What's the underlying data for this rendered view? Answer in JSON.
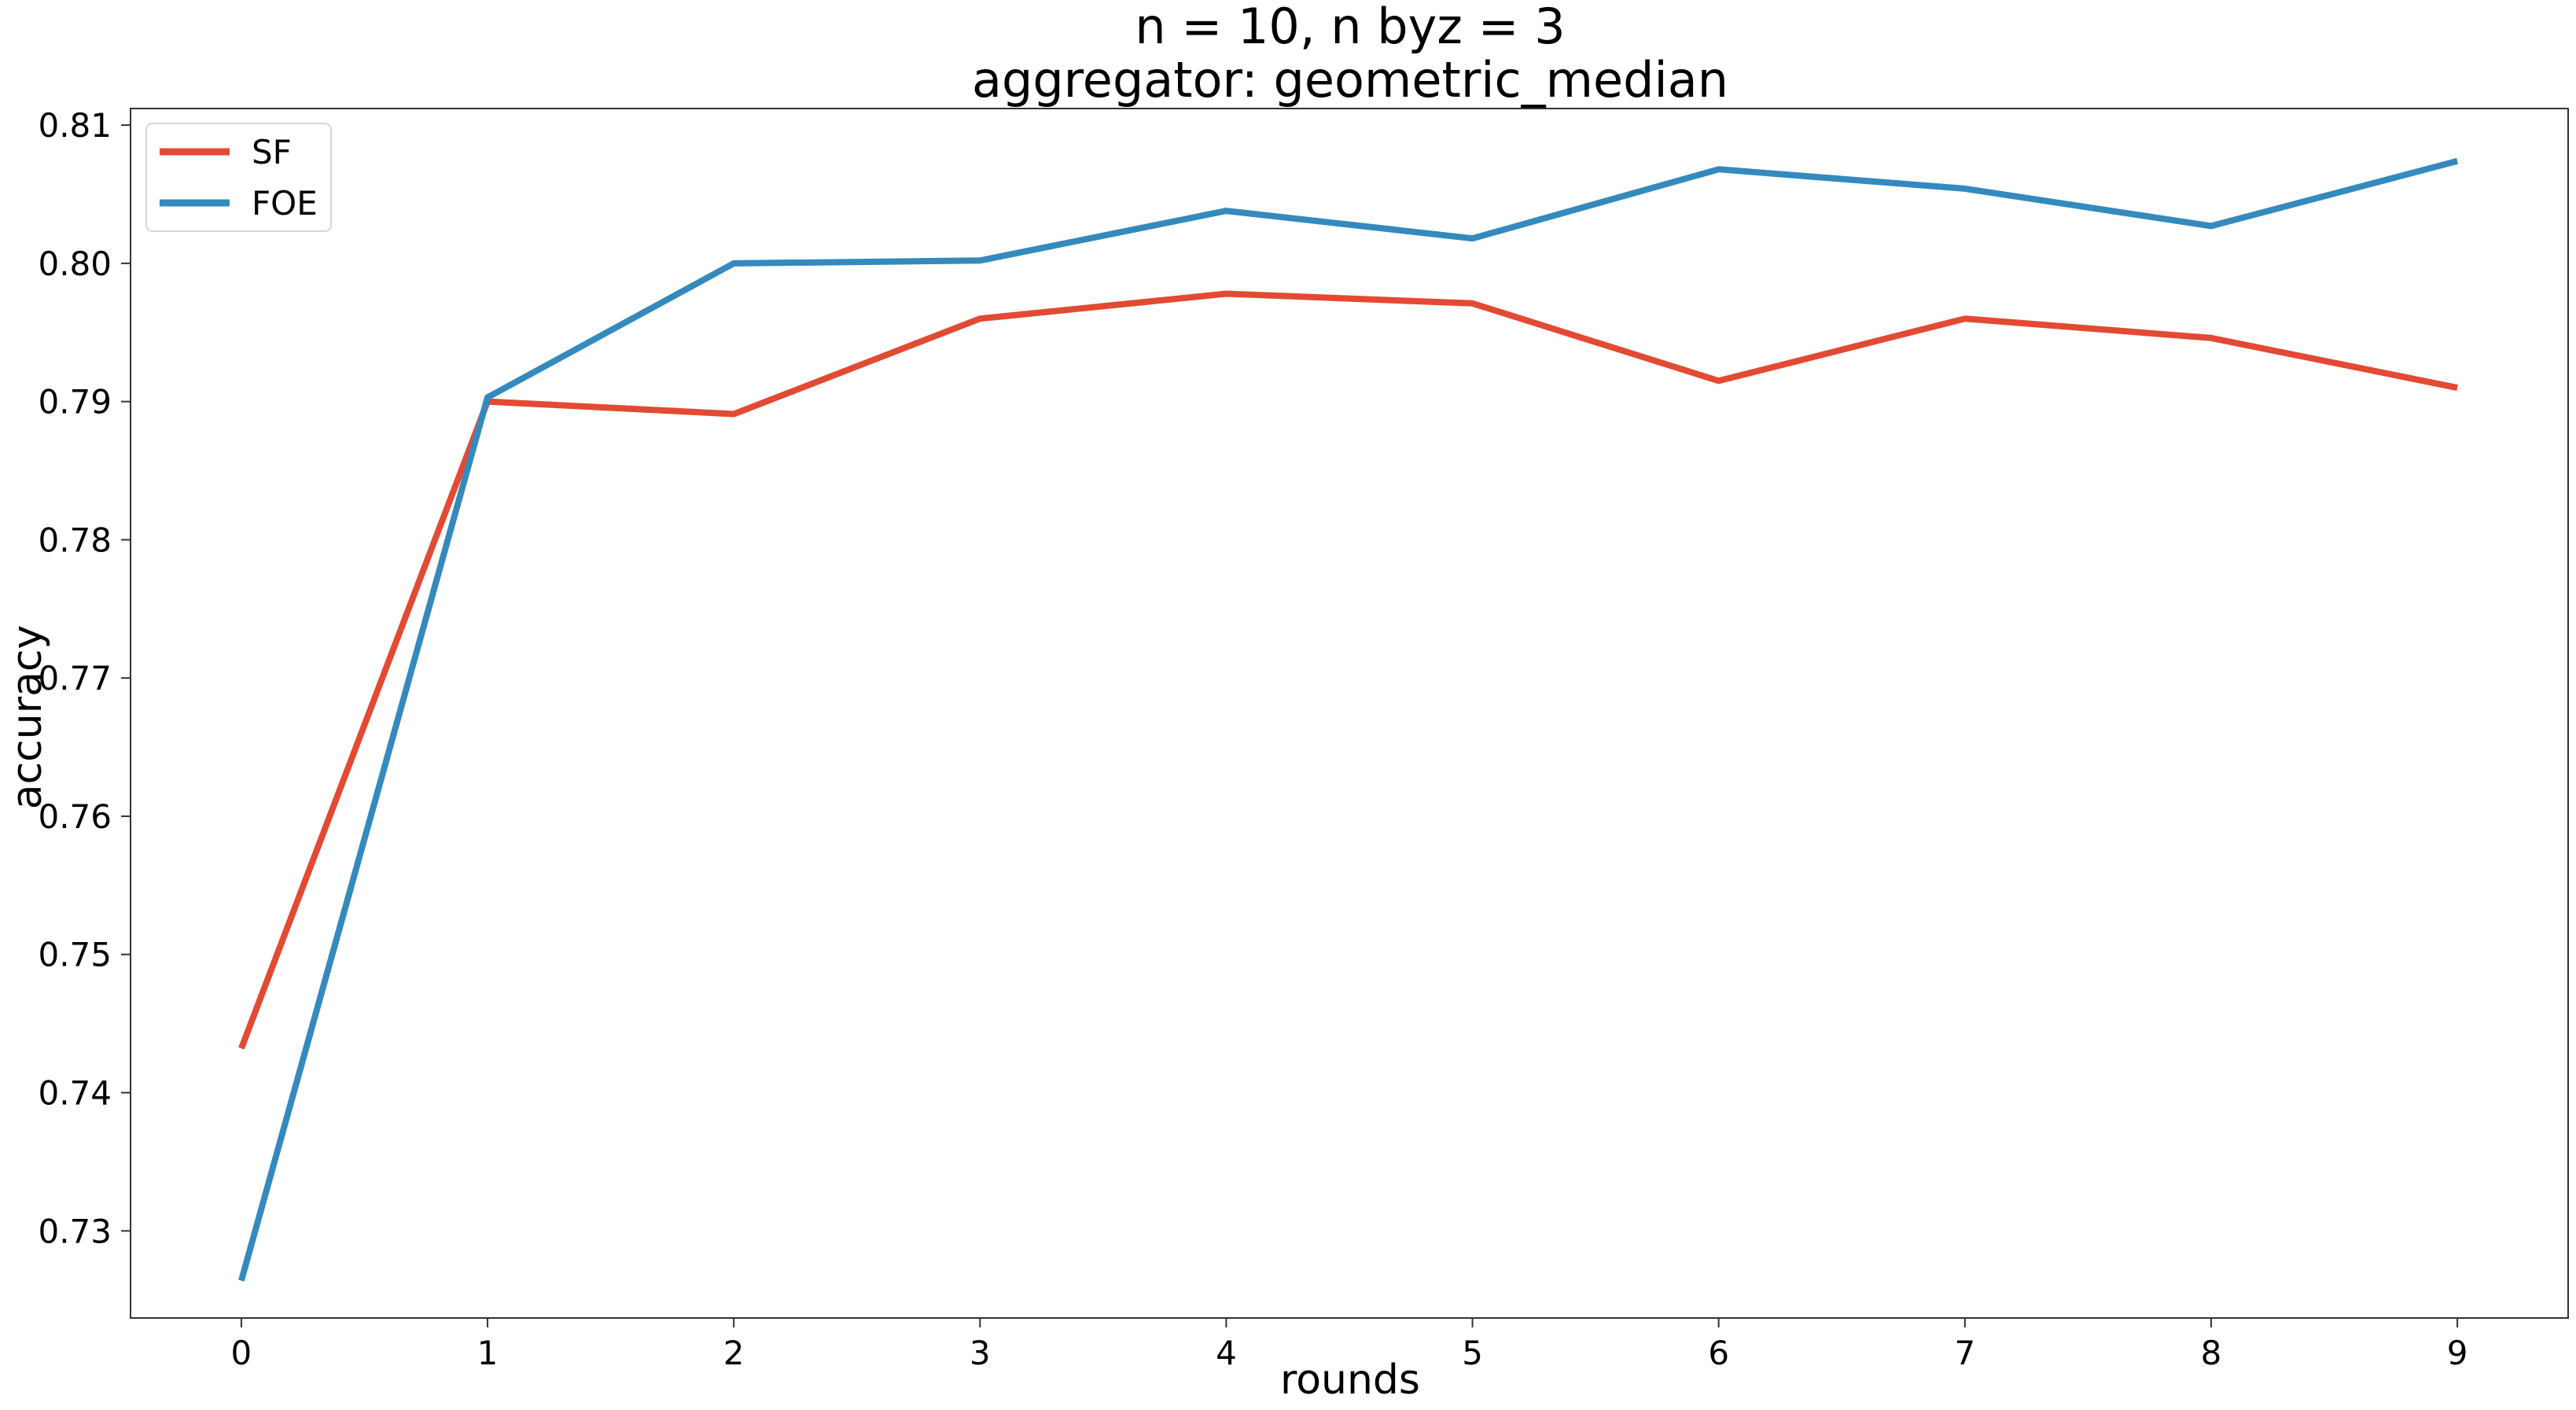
{
  "chart_data": {
    "type": "line",
    "title": "n = 10, n byz = 3",
    "subtitle": "aggregator: geometric_median",
    "xlabel": "rounds",
    "ylabel": "accuracy",
    "x": [
      0,
      1,
      2,
      3,
      4,
      5,
      6,
      7,
      8,
      9
    ],
    "xticks": [
      "0",
      "1",
      "2",
      "3",
      "4",
      "5",
      "6",
      "7",
      "8",
      "9"
    ],
    "yticks": [
      "0.73",
      "0.74",
      "0.75",
      "0.76",
      "0.77",
      "0.78",
      "0.79",
      "0.80",
      "0.81"
    ],
    "ylim": [
      0.7237,
      0.8112
    ],
    "xlim": [
      -0.45,
      9.45
    ],
    "grid": false,
    "legend_position": "upper-left",
    "series": [
      {
        "name": "SF",
        "color": "#e24a33",
        "values": [
          0.7432,
          0.79,
          0.7891,
          0.796,
          0.7978,
          0.7971,
          0.7915,
          0.796,
          0.7946,
          0.791
        ]
      },
      {
        "name": "FOE",
        "color": "#348abd",
        "values": [
          0.7264,
          0.7903,
          0.8,
          0.8002,
          0.8038,
          0.8018,
          0.8068,
          0.8054,
          0.8027,
          0.8074
        ]
      }
    ]
  }
}
